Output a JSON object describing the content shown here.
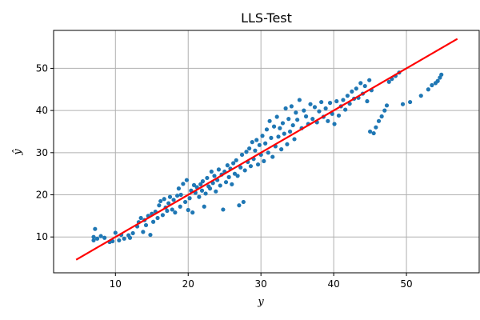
{
  "chart_data": {
    "type": "scatter",
    "title": "LLS-Test",
    "xlabel": "y",
    "ylabel": "ŷ",
    "xlim": [
      1.5,
      60.0
    ],
    "ylim": [
      1.5,
      59.0
    ],
    "xticks": [
      10,
      20,
      30,
      40,
      50
    ],
    "yticks": [
      10,
      20,
      30,
      40,
      50
    ],
    "grid": true,
    "colors": {
      "points": "#1f77b4",
      "fit_line": "#ff0000",
      "grid": "#b0b0b0"
    },
    "fit_line": {
      "x": [
        4.6,
        57.0
      ],
      "y": [
        4.6,
        57.0
      ]
    },
    "points": [
      [
        7.0,
        9.2
      ],
      [
        7.0,
        10.0
      ],
      [
        7.2,
        11.9
      ],
      [
        7.5,
        9.6
      ],
      [
        8.0,
        10.2
      ],
      [
        8.5,
        9.8
      ],
      [
        9.2,
        8.8
      ],
      [
        9.6,
        9.0
      ],
      [
        10.0,
        11.0
      ],
      [
        10.5,
        9.2
      ],
      [
        10.8,
        10.5
      ],
      [
        11.2,
        9.6
      ],
      [
        11.8,
        10.4
      ],
      [
        12.0,
        9.8
      ],
      [
        12.4,
        10.9
      ],
      [
        13.0,
        12.5
      ],
      [
        13.2,
        13.5
      ],
      [
        13.5,
        14.5
      ],
      [
        13.8,
        11.2
      ],
      [
        14.0,
        14.0
      ],
      [
        14.2,
        12.8
      ],
      [
        14.5,
        15.0
      ],
      [
        14.8,
        10.5
      ],
      [
        15.0,
        15.5
      ],
      [
        15.2,
        13.6
      ],
      [
        15.5,
        16.0
      ],
      [
        15.8,
        14.5
      ],
      [
        16.0,
        17.5
      ],
      [
        16.2,
        18.5
      ],
      [
        16.5,
        15.2
      ],
      [
        16.7,
        19.0
      ],
      [
        16.9,
        17.0
      ],
      [
        17.1,
        16.2
      ],
      [
        17.3,
        18.0
      ],
      [
        17.5,
        19.5
      ],
      [
        17.8,
        16.5
      ],
      [
        18.0,
        18.8
      ],
      [
        18.2,
        15.8
      ],
      [
        18.5,
        19.8
      ],
      [
        18.7,
        21.5
      ],
      [
        18.9,
        17.2
      ],
      [
        19.0,
        20.0
      ],
      [
        19.3,
        22.6
      ],
      [
        19.6,
        18.3
      ],
      [
        19.8,
        23.5
      ],
      [
        20.0,
        16.4
      ],
      [
        20.2,
        19.2
      ],
      [
        20.4,
        21.0
      ],
      [
        20.6,
        15.8
      ],
      [
        20.8,
        22.3
      ],
      [
        21.0,
        20.5
      ],
      [
        21.2,
        21.8
      ],
      [
        21.5,
        19.5
      ],
      [
        21.7,
        22.5
      ],
      [
        21.9,
        21.0
      ],
      [
        22.0,
        23.2
      ],
      [
        22.2,
        17.2
      ],
      [
        22.4,
        20.3
      ],
      [
        22.6,
        24.0
      ],
      [
        22.8,
        22.0
      ],
      [
        23.0,
        21.5
      ],
      [
        23.2,
        25.5
      ],
      [
        23.4,
        22.8
      ],
      [
        23.6,
        24.5
      ],
      [
        23.8,
        20.8
      ],
      [
        24.0,
        23.5
      ],
      [
        24.2,
        26.0
      ],
      [
        24.4,
        22.2
      ],
      [
        24.6,
        24.8
      ],
      [
        24.8,
        16.5
      ],
      [
        25.0,
        25.5
      ],
      [
        25.2,
        23.0
      ],
      [
        25.4,
        27.0
      ],
      [
        25.6,
        24.2
      ],
      [
        25.8,
        26.2
      ],
      [
        26.0,
        22.5
      ],
      [
        26.2,
        27.5
      ],
      [
        26.4,
        25.0
      ],
      [
        26.6,
        28.2
      ],
      [
        26.8,
        24.5
      ],
      [
        27.0,
        17.5
      ],
      [
        27.2,
        26.5
      ],
      [
        27.4,
        29.5
      ],
      [
        27.6,
        18.3
      ],
      [
        27.8,
        25.8
      ],
      [
        28.0,
        30.2
      ],
      [
        28.2,
        27.8
      ],
      [
        28.4,
        31.0
      ],
      [
        28.6,
        26.8
      ],
      [
        28.8,
        32.5
      ],
      [
        29.0,
        28.5
      ],
      [
        29.2,
        30.5
      ],
      [
        29.4,
        33.0
      ],
      [
        29.6,
        27.2
      ],
      [
        29.8,
        31.8
      ],
      [
        30.0,
        29.5
      ],
      [
        30.2,
        34.0
      ],
      [
        30.4,
        28.0
      ],
      [
        30.6,
        32.2
      ],
      [
        30.8,
        35.5
      ],
      [
        31.0,
        30.0
      ],
      [
        31.2,
        37.5
      ],
      [
        31.4,
        33.5
      ],
      [
        31.6,
        29.0
      ],
      [
        31.8,
        36.2
      ],
      [
        32.0,
        31.5
      ],
      [
        32.2,
        38.5
      ],
      [
        32.4,
        33.8
      ],
      [
        32.6,
        35.8
      ],
      [
        32.8,
        30.8
      ],
      [
        33.0,
        37.0
      ],
      [
        33.2,
        34.5
      ],
      [
        33.4,
        40.5
      ],
      [
        33.6,
        32.0
      ],
      [
        33.8,
        38.0
      ],
      [
        34.0,
        35.0
      ],
      [
        34.2,
        41.0
      ],
      [
        34.4,
        36.5
      ],
      [
        34.6,
        33.2
      ],
      [
        34.8,
        39.5
      ],
      [
        35.0,
        37.8
      ],
      [
        35.3,
        42.5
      ],
      [
        35.6,
        35.8
      ],
      [
        35.9,
        40.0
      ],
      [
        36.2,
        38.6
      ],
      [
        36.5,
        36.8
      ],
      [
        36.8,
        41.5
      ],
      [
        37.1,
        38.0
      ],
      [
        37.4,
        40.8
      ],
      [
        37.7,
        37.2
      ],
      [
        38.0,
        39.8
      ],
      [
        38.3,
        42.0
      ],
      [
        38.6,
        38.5
      ],
      [
        38.9,
        40.5
      ],
      [
        39.2,
        37.5
      ],
      [
        39.5,
        41.8
      ],
      [
        39.8,
        39.2
      ],
      [
        40.1,
        36.8
      ],
      [
        40.4,
        42.2
      ],
      [
        40.7,
        38.8
      ],
      [
        41.0,
        41.0
      ],
      [
        41.3,
        42.5
      ],
      [
        41.6,
        40.2
      ],
      [
        41.9,
        43.5
      ],
      [
        42.2,
        41.6
      ],
      [
        42.5,
        44.5
      ],
      [
        42.8,
        42.8
      ],
      [
        43.1,
        45.2
      ],
      [
        43.4,
        43.0
      ],
      [
        43.7,
        46.5
      ],
      [
        44.0,
        44.0
      ],
      [
        44.3,
        45.8
      ],
      [
        44.6,
        42.2
      ],
      [
        44.9,
        47.2
      ],
      [
        45.2,
        44.8
      ],
      [
        45.0,
        35.0
      ],
      [
        45.5,
        34.6
      ],
      [
        45.8,
        36.0
      ],
      [
        46.2,
        37.5
      ],
      [
        46.6,
        38.6
      ],
      [
        47.0,
        40.0
      ],
      [
        47.3,
        41.2
      ],
      [
        47.6,
        46.8
      ],
      [
        48.0,
        47.5
      ],
      [
        48.5,
        48.2
      ],
      [
        49.0,
        49.0
      ],
      [
        49.5,
        41.5
      ],
      [
        50.5,
        42.0
      ],
      [
        52.0,
        43.5
      ],
      [
        53.0,
        45.0
      ],
      [
        53.5,
        46.0
      ],
      [
        54.0,
        46.5
      ],
      [
        54.3,
        47.0
      ],
      [
        54.6,
        47.8
      ],
      [
        54.8,
        48.5
      ]
    ]
  }
}
